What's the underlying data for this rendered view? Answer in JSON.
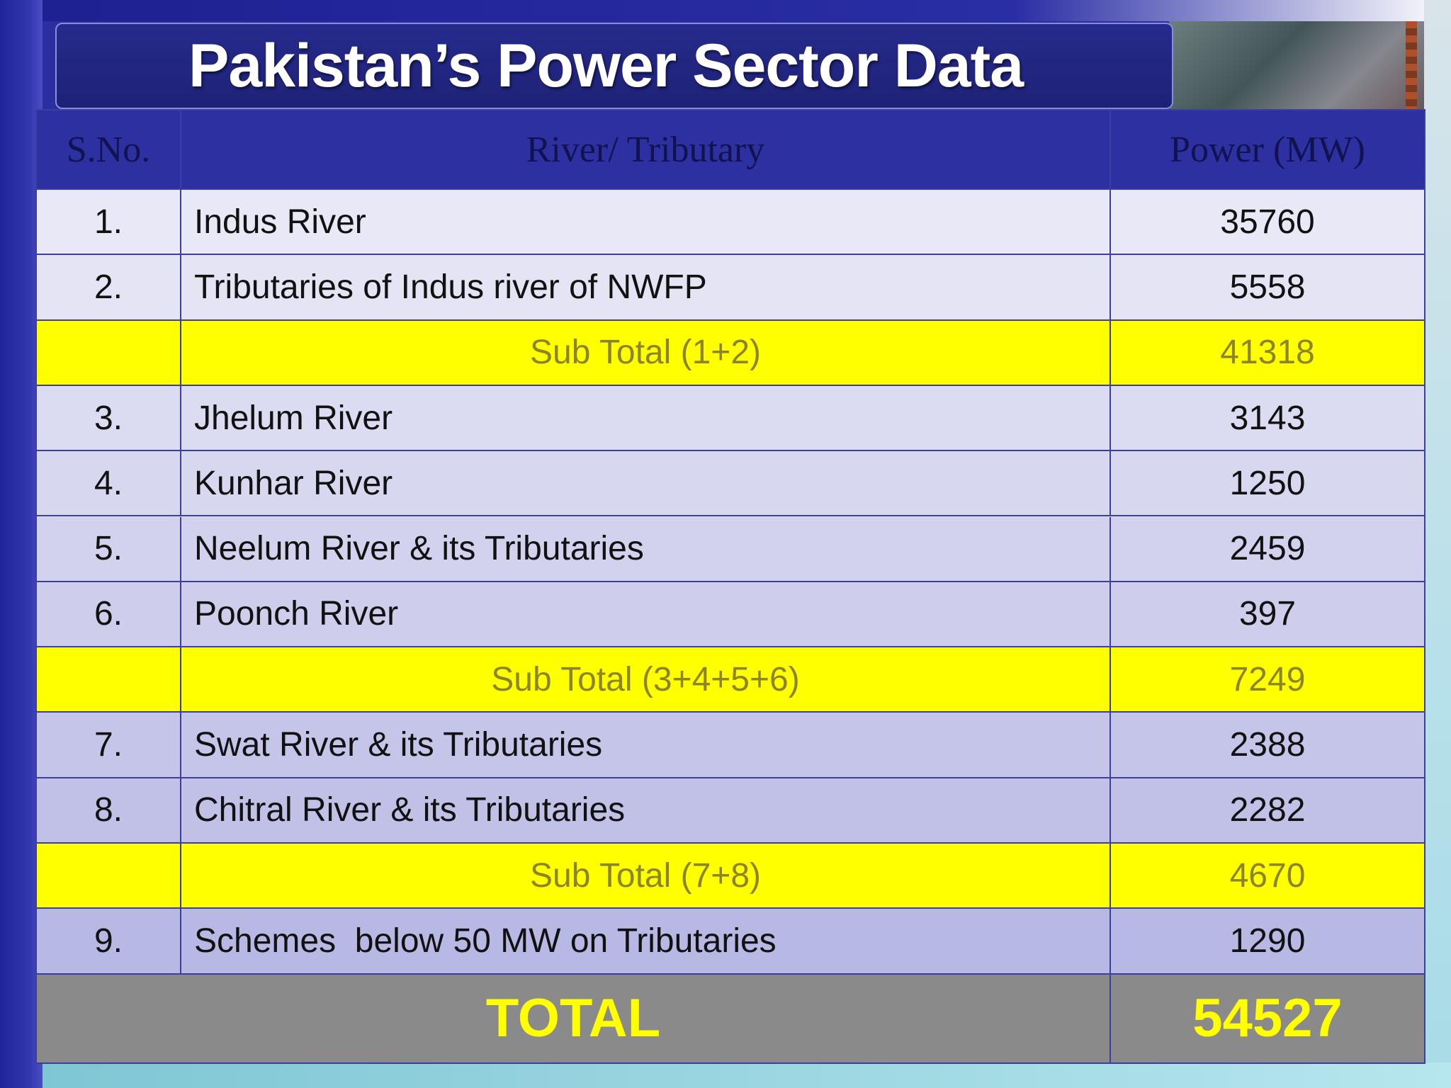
{
  "title": "Pakistan’s Power Sector Data",
  "columns": {
    "sno": "S.No.",
    "river": "River/ Tributary",
    "power": "Power (MW)"
  },
  "rows": [
    {
      "type": "data",
      "sno": "1.",
      "name": "Indus River",
      "power": "35760"
    },
    {
      "type": "data",
      "sno": "2.",
      "name": "Tributaries of Indus river of NWFP",
      "power": "5558"
    },
    {
      "type": "subtotal",
      "sno": "",
      "name": "Sub Total (1+2)",
      "power": "41318"
    },
    {
      "type": "data",
      "sno": "3.",
      "name": "Jhelum River",
      "power": "3143"
    },
    {
      "type": "data",
      "sno": "4.",
      "name": "Kunhar River",
      "power": "1250"
    },
    {
      "type": "data",
      "sno": "5.",
      "name": "Neelum River & its Tributaries",
      "power": "2459"
    },
    {
      "type": "data",
      "sno": "6.",
      "name": "Poonch River",
      "power": "397"
    },
    {
      "type": "subtotal",
      "sno": "",
      "name": "Sub Total (3+4+5+6)",
      "power": "7249"
    },
    {
      "type": "data",
      "sno": "7.",
      "name": "Swat River & its Tributaries",
      "power": "2388"
    },
    {
      "type": "data",
      "sno": "8.",
      "name": "Chitral River & its Tributaries",
      "power": "2282"
    },
    {
      "type": "subtotal",
      "sno": "",
      "name": "Sub Total (7+8)",
      "power": "4670"
    },
    {
      "type": "data",
      "sno": "9.",
      "name": "Schemes  below 50 MW on Tributaries",
      "power": "1290"
    }
  ],
  "total": {
    "label": "TOTAL",
    "power": "54527"
  },
  "colors": {
    "header_bg": "#2c30a0",
    "subtotal_bg": "#ffff00",
    "total_bg": "#8a8a8a",
    "total_text": "#ffff00",
    "row_gradient_top": "#e8e8f6",
    "row_gradient_bottom": "#b8b8e4"
  }
}
